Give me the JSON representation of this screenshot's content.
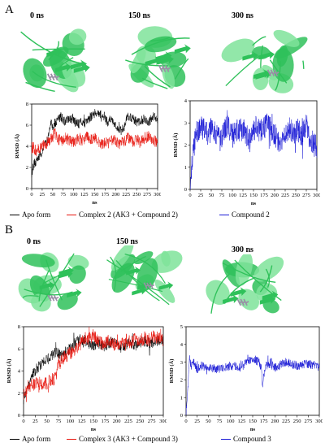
{
  "panels": [
    {
      "letter": "A",
      "time_labels": [
        "0 ns",
        "150 ns",
        "300 ns"
      ],
      "legend": [
        {
          "label": "Apo form",
          "color": "#000000"
        },
        {
          "label": "Complex 2 (AK3 + Compound 2)",
          "color": "#e8170f"
        },
        {
          "label": "Compound 2",
          "color": "#1a1ad6"
        }
      ]
    },
    {
      "letter": "B",
      "time_labels": [
        "0 ns",
        "150 ns",
        "300 ns"
      ],
      "legend": [
        {
          "label": "Apo form",
          "color": "#000000"
        },
        {
          "label": "Complex 3 (AK3 + Compound 3)",
          "color": "#e8170f"
        },
        {
          "label": "Compound 3",
          "color": "#1a1ad6"
        }
      ]
    }
  ],
  "colors": {
    "protein": "#2fc15a",
    "protein_light": "#7fe39a",
    "ligand": "#9a8fa6"
  },
  "chart_data": [
    {
      "type": "line",
      "xlabel": "ns",
      "ylabel": "RMSD (Å)",
      "xlim": [
        0,
        300
      ],
      "ylim": [
        0,
        8
      ],
      "xticks": [
        0,
        25,
        50,
        75,
        100,
        125,
        150,
        175,
        200,
        225,
        250,
        275,
        300
      ],
      "yticks": [
        0,
        2,
        4,
        6,
        8
      ],
      "series": [
        {
          "name": "Apo form",
          "color": "#000000",
          "x": [
            0,
            5,
            10,
            20,
            30,
            40,
            45,
            50,
            60,
            70,
            80,
            90,
            100,
            110,
            120,
            130,
            140,
            150,
            160,
            170,
            175,
            180,
            190,
            195,
            200,
            210,
            220,
            225,
            230,
            240,
            250,
            260,
            270,
            280,
            290,
            300
          ],
          "y": [
            1.5,
            2.2,
            2.6,
            3.2,
            3.9,
            5.0,
            6.3,
            5.8,
            6.5,
            6.8,
            6.3,
            6.7,
            6.4,
            6.1,
            6.3,
            6.2,
            6.8,
            7.1,
            7.0,
            6.9,
            6.8,
            6.2,
            6.7,
            6.3,
            6.1,
            5.5,
            5.8,
            6.4,
            6.9,
            6.7,
            6.3,
            6.5,
            6.6,
            6.3,
            6.8,
            6.6
          ],
          "noise": 0.45
        },
        {
          "name": "Complex 2 (AK3 + Compound 2)",
          "color": "#e8170f",
          "x": [
            0,
            5,
            10,
            20,
            30,
            40,
            50,
            55,
            60,
            70,
            80,
            90,
            100,
            110,
            120,
            130,
            140,
            150,
            160,
            170,
            180,
            190,
            200,
            210,
            220,
            230,
            240,
            250,
            260,
            270,
            280,
            290,
            300
          ],
          "y": [
            3.8,
            4.0,
            3.5,
            3.9,
            4.2,
            4.4,
            4.9,
            5.4,
            4.9,
            4.4,
            4.8,
            4.6,
            4.4,
            4.7,
            4.5,
            4.9,
            4.6,
            4.8,
            4.3,
            4.2,
            4.4,
            4.7,
            4.5,
            4.1,
            4.5,
            4.8,
            4.4,
            4.6,
            4.5,
            4.8,
            4.9,
            4.6,
            4.3
          ],
          "noise": 0.55
        }
      ]
    },
    {
      "type": "line",
      "xlabel": "ns",
      "ylabel": "RMSD (Å)",
      "xlim": [
        0,
        300
      ],
      "ylim": [
        0,
        4
      ],
      "xticks": [
        0,
        25,
        50,
        75,
        100,
        125,
        150,
        175,
        200,
        225,
        250,
        275,
        300
      ],
      "yticks": [
        0,
        1,
        2,
        3,
        4
      ],
      "series": [
        {
          "name": "Compound 2",
          "color": "#1a1ad6",
          "x": [
            0,
            3,
            8,
            15,
            25,
            40,
            55,
            70,
            80,
            90,
            100,
            110,
            125,
            140,
            155,
            170,
            180,
            195,
            205,
            215,
            225,
            235,
            245,
            255,
            265,
            275,
            285,
            295,
            300
          ],
          "y": [
            0.3,
            0.8,
            1.8,
            2.6,
            2.8,
            2.5,
            2.8,
            2.2,
            2.6,
            2.9,
            2.4,
            2.6,
            2.7,
            2.3,
            2.8,
            2.6,
            2.9,
            2.7,
            2.3,
            2.0,
            2.4,
            2.8,
            2.5,
            2.7,
            2.4,
            2.9,
            2.2,
            2.0,
            1.8
          ],
          "noise": 0.55
        }
      ]
    },
    {
      "type": "line",
      "xlabel": "ns",
      "ylabel": "RMSD (Å)",
      "xlim": [
        0,
        300
      ],
      "ylim": [
        0,
        8
      ],
      "xticks": [
        0,
        25,
        50,
        75,
        100,
        125,
        150,
        175,
        200,
        225,
        250,
        275,
        300
      ],
      "yticks": [
        0,
        2,
        4,
        6,
        8
      ],
      "series": [
        {
          "name": "Apo form",
          "color": "#000000",
          "x": [
            0,
            10,
            20,
            30,
            40,
            50,
            60,
            70,
            80,
            90,
            100,
            110,
            120,
            130,
            140,
            150,
            160,
            170,
            180,
            190,
            200,
            210,
            220,
            230,
            240,
            250,
            260,
            270,
            280,
            290,
            300
          ],
          "y": [
            1.5,
            2.5,
            3.8,
            4.3,
            4.6,
            5.0,
            5.3,
            5.8,
            5.4,
            5.7,
            6.0,
            6.5,
            6.9,
            6.8,
            6.5,
            6.3,
            6.6,
            6.2,
            6.4,
            6.7,
            6.5,
            6.1,
            6.4,
            6.6,
            6.3,
            6.5,
            6.7,
            6.5,
            6.6,
            6.8,
            6.7
          ],
          "noise": 0.5
        },
        {
          "name": "Complex 3 (AK3 + Compound 3)",
          "color": "#e8170f",
          "x": [
            0,
            10,
            20,
            30,
            40,
            50,
            60,
            70,
            75,
            80,
            90,
            100,
            110,
            120,
            130,
            140,
            150,
            160,
            170,
            180,
            190,
            200,
            210,
            220,
            230,
            240,
            250,
            260,
            270,
            280,
            290,
            300
          ],
          "y": [
            2.0,
            2.6,
            2.8,
            3.0,
            2.7,
            2.9,
            3.2,
            3.4,
            4.8,
            5.0,
            5.3,
            5.6,
            6.0,
            6.3,
            7.0,
            6.9,
            7.2,
            6.7,
            6.4,
            6.8,
            6.6,
            6.2,
            6.5,
            6.8,
            6.6,
            6.9,
            6.7,
            7.0,
            6.8,
            7.1,
            6.9,
            6.8
          ],
          "noise": 0.6
        }
      ]
    },
    {
      "type": "line",
      "xlabel": "ns",
      "ylabel": "RMSD (Å)",
      "xlim": [
        0,
        300
      ],
      "ylim": [
        0,
        5
      ],
      "xticks": [
        0,
        25,
        50,
        75,
        100,
        125,
        150,
        175,
        200,
        225,
        250,
        275,
        300
      ],
      "yticks": [
        0,
        1,
        2,
        3,
        4,
        5
      ],
      "series": [
        {
          "name": "Compound 3",
          "color": "#1a1ad6",
          "x": [
            0,
            2,
            5,
            8,
            12,
            18,
            25,
            35,
            50,
            75,
            100,
            125,
            140,
            150,
            165,
            170,
            172,
            175,
            180,
            190,
            200,
            225,
            250,
            275,
            300
          ],
          "y": [
            0.2,
            0.8,
            2.0,
            3.2,
            2.8,
            3.0,
            2.6,
            2.8,
            2.7,
            2.6,
            2.8,
            2.7,
            3.1,
            3.2,
            3.0,
            2.6,
            1.6,
            2.2,
            2.8,
            2.9,
            2.7,
            3.0,
            2.8,
            2.9,
            2.7
          ],
          "noise": 0.25
        }
      ]
    }
  ]
}
